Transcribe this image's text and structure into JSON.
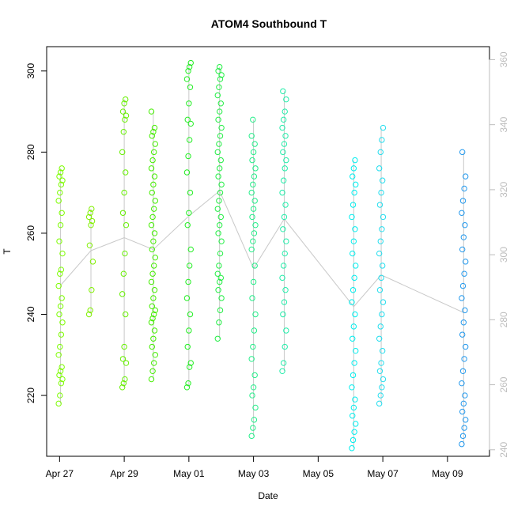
{
  "chart_data": {
    "type": "scatter",
    "title": "ATOM4 Southbound T",
    "xlabel": "Date",
    "ylabel": "T",
    "x_ticks": [
      "Apr 27",
      "Apr 29",
      "May 01",
      "May 03",
      "May 05",
      "May 07",
      "May 09"
    ],
    "x_tick_days": [
      0,
      2,
      4,
      6,
      8,
      10,
      12
    ],
    "xlim_days": [
      -0.4,
      13.3
    ],
    "y_left": {
      "ticks": [
        220,
        240,
        260,
        280,
        300
      ],
      "lim": [
        205,
        306
      ]
    },
    "y_right": {
      "ticks": [
        240,
        260,
        280,
        300,
        320,
        340,
        360
      ],
      "lim": [
        238,
        364
      ],
      "color": "#bdbdbd"
    },
    "grid": false,
    "legend": "none",
    "profile_line_color": "#c8c8c8",
    "point_style": "open circle",
    "series": [
      {
        "day": 0.03,
        "color": "#7CFC00",
        "values": [
          218,
          220,
          223,
          224,
          225,
          226,
          227,
          230,
          232,
          235,
          238,
          240,
          242,
          244,
          247,
          250,
          251,
          255,
          258,
          262,
          265,
          268,
          270,
          272,
          273,
          274,
          275,
          276
        ]
      },
      {
        "day": 0.97,
        "color": "#80f000",
        "values": [
          240,
          241,
          246,
          253,
          257,
          262,
          263,
          264,
          265,
          266
        ]
      },
      {
        "day": 2.0,
        "color": "#66f000",
        "values": [
          222,
          223,
          224,
          228,
          229,
          232,
          240,
          245,
          250,
          255,
          262,
          265,
          270,
          275,
          280,
          285,
          288,
          289,
          290,
          292,
          293
        ]
      },
      {
        "day": 2.9,
        "color": "#44ee00",
        "values": [
          224,
          226,
          228,
          230,
          232,
          234,
          236,
          238,
          239,
          240,
          241,
          242,
          244,
          246,
          248,
          250,
          252,
          254,
          256,
          258,
          260,
          262,
          264,
          266,
          268,
          270,
          272,
          274,
          276,
          278,
          280,
          282,
          284,
          285,
          286,
          290
        ]
      },
      {
        "day": 4.0,
        "color": "#22ee22",
        "values": [
          222,
          223,
          227,
          228,
          232,
          236,
          240,
          244,
          248,
          252,
          256,
          262,
          265,
          270,
          275,
          279,
          283,
          287,
          288,
          292,
          296,
          298,
          300,
          301,
          302
        ]
      },
      {
        "day": 4.95,
        "color": "#22ee44",
        "values": [
          234,
          238,
          241,
          244,
          246,
          248,
          249,
          250,
          252,
          255,
          258,
          260,
          262,
          264,
          266,
          268,
          270,
          272,
          274,
          276,
          278,
          280,
          282,
          284,
          286,
          288,
          290,
          292,
          294,
          296,
          298,
          299,
          300,
          301
        ]
      },
      {
        "day": 6.0,
        "color": "#22ee88",
        "values": [
          210,
          212,
          214,
          217,
          220,
          222,
          225,
          229,
          232,
          236,
          240,
          244,
          248,
          252,
          256,
          258,
          260,
          262,
          264,
          266,
          268,
          270,
          272,
          274,
          276,
          278,
          280,
          282,
          284,
          288
        ]
      },
      {
        "day": 6.95,
        "color": "#22eeaa",
        "values": [
          226,
          228,
          232,
          236,
          240,
          243,
          246,
          249,
          252,
          255,
          258,
          261,
          264,
          267,
          270,
          273,
          276,
          278,
          280,
          282,
          284,
          286,
          288,
          290,
          293,
          295
        ]
      },
      {
        "day": 9.1,
        "color": "#00eeee",
        "values": [
          207,
          209,
          211,
          213,
          215,
          217,
          219,
          222,
          225,
          228,
          231,
          234,
          237,
          240,
          243,
          246,
          249,
          252,
          255,
          258,
          261,
          264,
          267,
          270,
          272,
          274,
          276,
          278
        ]
      },
      {
        "day": 9.95,
        "color": "#22ddee",
        "values": [
          218,
          220,
          222,
          224,
          226,
          228,
          231,
          234,
          237,
          240,
          243,
          246,
          249,
          252,
          255,
          258,
          261,
          264,
          267,
          270,
          273,
          276,
          280,
          283,
          286
        ]
      },
      {
        "day": 12.5,
        "color": "#2299ee",
        "values": [
          208,
          210,
          212,
          214,
          216,
          218,
          220,
          223,
          226,
          229,
          232,
          235,
          238,
          241,
          244,
          247,
          250,
          253,
          256,
          259,
          262,
          265,
          268,
          271,
          274,
          280
        ]
      }
    ]
  }
}
